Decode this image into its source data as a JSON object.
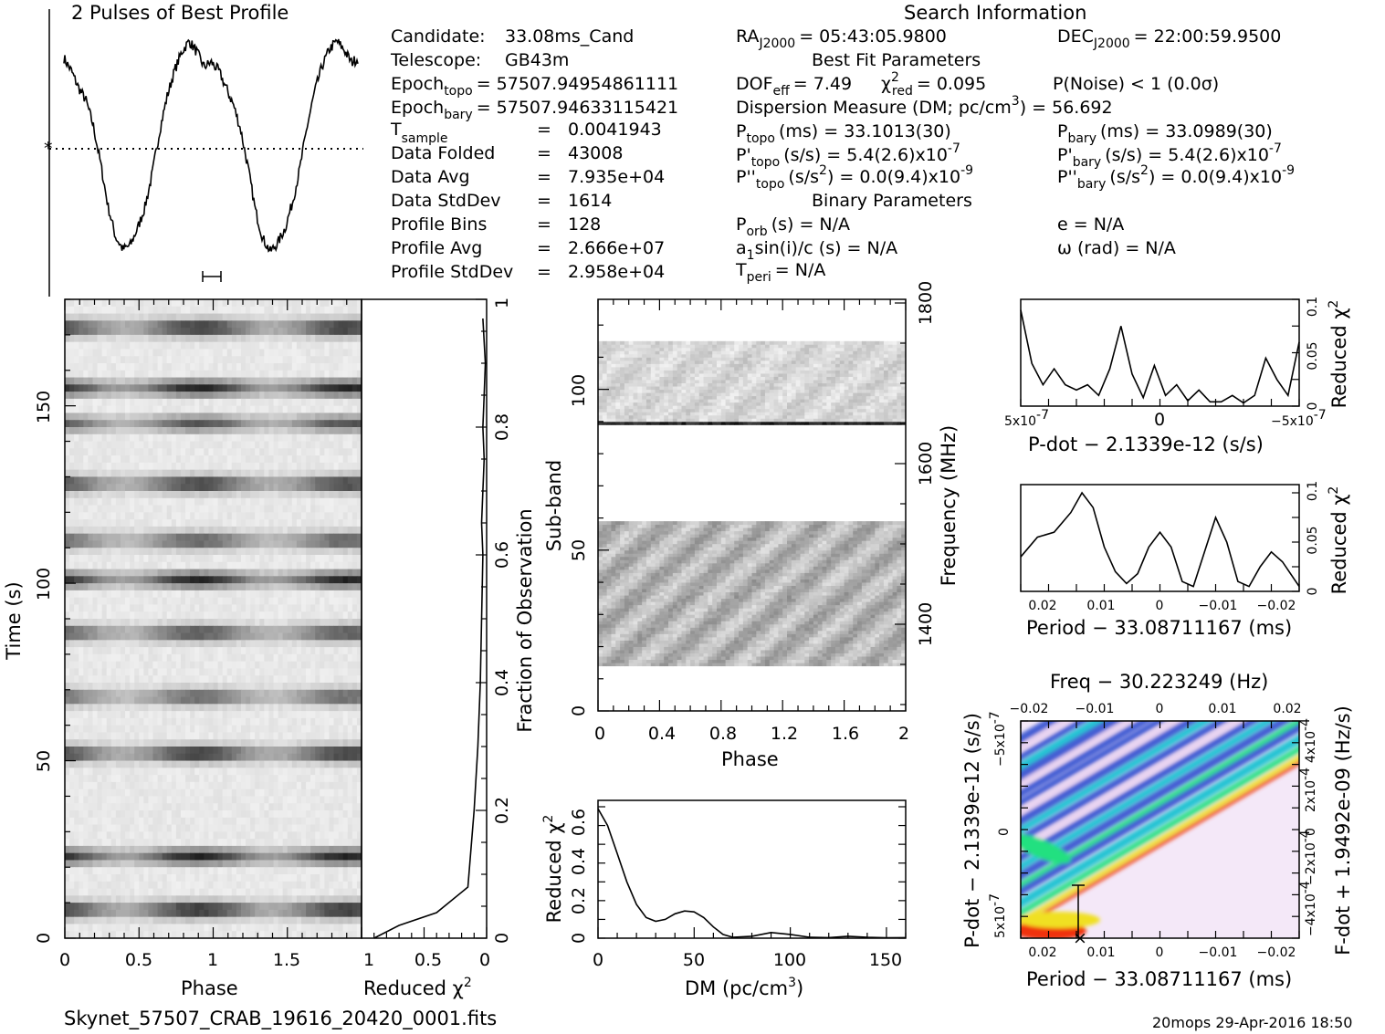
{
  "profile": {
    "title": "2 Pulses of Best Profile",
    "error_bar": true
  },
  "search_info": {
    "title": "Search Information",
    "candidate": {
      "label": "Candidate:",
      "value": "33.08ms_Cand"
    },
    "telescope": {
      "label": "Telescope:",
      "value": "GB43m"
    },
    "epoch_topo": {
      "label": "Epoch",
      "sub": "topo",
      "value": "= 57507.94954861111"
    },
    "epoch_bary": {
      "label": "Epoch",
      "sub": "bary",
      "value": "= 57507.94633115421"
    },
    "t_sample": {
      "label": "T",
      "sub": "sample",
      "eq": "=",
      "value": "0.0041943"
    },
    "data_folded": {
      "label": "Data Folded",
      "eq": "=",
      "value": "43008"
    },
    "data_avg": {
      "label": "Data Avg",
      "eq": "=",
      "value": "7.935e+04"
    },
    "data_stddev": {
      "label": "Data StdDev",
      "eq": "=",
      "value": "1614"
    },
    "profile_bins": {
      "label": "Profile Bins",
      "eq": "=",
      "value": "128"
    },
    "profile_avg": {
      "label": "Profile Avg",
      "eq": "=",
      "value": "2.666e+07"
    },
    "profile_stddev": {
      "label": "Profile StdDev",
      "eq": "=",
      "value": "2.958e+04"
    },
    "ra": {
      "label": "RA",
      "sub": "J2000",
      "value": "= 05:43:05.9800"
    },
    "dec": {
      "label": "DEC",
      "sub": "J2000",
      "value": "= 22:00:59.9500"
    },
    "best_fit_title": "Best Fit Parameters",
    "dof": {
      "label": "DOF",
      "sub": "eff",
      "value": "= 7.49"
    },
    "chi2": {
      "label": "χ",
      "sup": "2",
      "sub": "red",
      "value": "= 0.095"
    },
    "pnoise": "P(Noise) < 1   (0.0σ)",
    "dm_line": {
      "text": "Dispersion Measure (DM; pc/cm",
      "sup": "3",
      "tail": ") = 56.692"
    },
    "p_topo": {
      "label": "P",
      "sub": "topo",
      "value": "(ms)  =  33.1013(30)"
    },
    "p_bary": {
      "label": "P",
      "sub": "bary",
      "value": "(ms)  =  33.0989(30)"
    },
    "pd_topo": {
      "label": "P'",
      "sub": "topo",
      "value": "(s/s)  =   5.4(2.6)x10",
      "exp": "-7"
    },
    "pd_bary": {
      "label": "P'",
      "sub": "bary",
      "value": "(s/s)  =   5.4(2.6)x10",
      "exp": "-7"
    },
    "pdd_topo": {
      "label": "P''",
      "sub": "topo",
      "value": "(s/s",
      "sup": "2",
      "tail": ") = 0.0(9.4)x10",
      "exp": "-9"
    },
    "pdd_bary": {
      "label": "P''",
      "sub": "bary",
      "value": "(s/s",
      "sup": "2",
      "tail": ") = 0.0(9.4)x10",
      "exp": "-9"
    },
    "binary_title": "Binary Parameters",
    "p_orb": {
      "label": "P",
      "sub": "orb",
      "value": "(s) = N/A"
    },
    "e": "e = N/A",
    "a1": {
      "label": "a",
      "sub": "1",
      "value": "sin(i)/c (s) = N/A"
    },
    "omega": "ω (rad) = N/A",
    "t_peri": {
      "label": "T",
      "sub": "peri",
      "value": "= N/A"
    }
  },
  "time_phase": {
    "xlabel": "Phase",
    "ylabel": "Time (s)",
    "xticks": [
      "0",
      "0.5",
      "1",
      "1.5"
    ],
    "yticks": [
      "0",
      "50",
      "100",
      "150"
    ]
  },
  "red_chi_time": {
    "xlabel": "Reduced χ",
    "xlabel_sup": "2",
    "xticks": [
      "1",
      "0.5",
      "0"
    ],
    "right_label": "Fraction of Observation",
    "right_ticks": [
      "0",
      "0.2",
      "0.4",
      "0.6",
      "0.8",
      "1"
    ]
  },
  "subband": {
    "xlabel": "Phase",
    "ylabel": "Sub-band",
    "xticks": [
      "0",
      "0.4",
      "0.8",
      "1.2",
      "1.6",
      "2"
    ],
    "yticks": [
      "0",
      "50",
      "100"
    ],
    "right_label": "Frequency (MHz)",
    "right_ticks": [
      "1400",
      "1600",
      "1800"
    ]
  },
  "dm_plot": {
    "xlabel": "DM (pc/cm",
    "xlabel_sup": "3",
    "xlabel_tail": ")",
    "ylabel": "Reduced χ",
    "ylabel_sup": "2",
    "xticks": [
      "0",
      "50",
      "100",
      "150"
    ],
    "yticks": [
      "0",
      "0.2",
      "0.4",
      "0.6"
    ]
  },
  "pdot_plot": {
    "xlabel": "P-dot − 2.1339e-12 (s/s)",
    "ylabel": "Reduced χ",
    "ylabel_sup": "2",
    "xticks": [
      "5x10",
      "0",
      "−5x10"
    ],
    "xtick_exp": "-7",
    "yticks": [
      "0",
      "0.05",
      "0.1"
    ]
  },
  "period_plot": {
    "xlabel": "Period − 33.08711167 (ms)",
    "ylabel": "Reduced χ",
    "ylabel_sup": "2",
    "xticks": [
      "0.02",
      "0.01",
      "0",
      "−0.01",
      "−0.02"
    ],
    "yticks": [
      "0",
      "0.05",
      "0.1"
    ]
  },
  "ppdot_plot": {
    "top_label": "Freq − 30.223249 (Hz)",
    "top_ticks": [
      "−0.02",
      "−0.01",
      "0",
      "0.01",
      "0.02"
    ],
    "xlabel": "Period − 33.08711167 (ms)",
    "xticks": [
      "0.02",
      "0.01",
      "0",
      "−0.01",
      "−0.02"
    ],
    "ylabel": "P-dot − 2.1339e-12 (s/s)",
    "yticks": [
      "5x10",
      "0",
      "−5x10"
    ],
    "ytick_exp": "-7",
    "right_label": "F-dot + 1.9492e-09 (Hz/s)",
    "right_ticks": [
      "−4x10",
      "−2x10",
      "0",
      "2x10",
      "4x10"
    ],
    "right_exp": "-4"
  },
  "footer": {
    "filename": "Skynet_57507_CRAB_19616_20420_0001.fits",
    "stamp": "20mops 29-Apr-2016 18:50"
  },
  "chart_data": [
    {
      "type": "line",
      "name": "profile",
      "x_range": [
        0,
        2
      ],
      "x": [
        0,
        0.05,
        0.1,
        0.15,
        0.2,
        0.25,
        0.3,
        0.35,
        0.4,
        0.45,
        0.5,
        0.55,
        0.6,
        0.65,
        0.7,
        0.75,
        0.8,
        0.85,
        0.9,
        0.95,
        1.0,
        1.05,
        1.1,
        1.15,
        1.2,
        1.25,
        1.3,
        1.35,
        1.4,
        1.45,
        1.5,
        1.55,
        1.6,
        1.65,
        1.7,
        1.75,
        1.8,
        1.85,
        1.9,
        1.95,
        2.0
      ],
      "y": [
        0.92,
        0.86,
        0.78,
        0.72,
        0.6,
        0.42,
        0.22,
        0.08,
        0.02,
        0.04,
        0.12,
        0.22,
        0.38,
        0.58,
        0.74,
        0.86,
        0.95,
        1.0,
        0.95,
        0.88,
        0.9,
        0.86,
        0.78,
        0.7,
        0.58,
        0.4,
        0.2,
        0.07,
        0.01,
        0.05,
        0.12,
        0.24,
        0.4,
        0.6,
        0.76,
        0.88,
        0.96,
        1.0,
        0.96,
        0.9,
        0.92
      ]
    },
    {
      "type": "heatmap",
      "name": "time-vs-phase",
      "xlim": [
        0,
        2
      ],
      "ylim": [
        0,
        180
      ],
      "xlabel": "Phase",
      "ylabel": "Time (s)",
      "dark_bands_time_s": [
        8,
        23,
        52,
        68,
        86,
        101,
        112,
        128,
        145,
        155,
        172
      ],
      "band_strength": [
        1.0,
        0.85,
        0.95,
        0.7,
        0.8,
        0.85,
        0.75,
        0.9,
        0.65,
        0.85,
        0.95
      ]
    },
    {
      "type": "line",
      "name": "reduced-chi2-vs-time",
      "x": [
        0.1,
        0.3,
        0.6,
        0.85,
        0.9,
        0.93,
        0.95,
        0.96,
        0.97,
        0.96,
        0.97,
        0.98,
        0.97,
        0.98,
        0.99,
        0.97
      ],
      "y": [
        0.0,
        0.02,
        0.04,
        0.08,
        0.2,
        0.3,
        0.4,
        0.5,
        0.6,
        0.65,
        0.7,
        0.75,
        0.8,
        0.85,
        0.9,
        0.97
      ]
    },
    {
      "type": "heatmap",
      "name": "subband-vs-phase",
      "xlim": [
        0,
        2
      ],
      "ylim": [
        0,
        128
      ],
      "filled_subband_ranges": [
        [
          14,
          59
        ],
        [
          89,
          115
        ]
      ],
      "dark_line_subband": 89
    },
    {
      "type": "line",
      "name": "dm-curve",
      "xlabel": "DM (pc/cm3)",
      "ylabel": "Reduced χ2",
      "xlim": [
        0,
        160
      ],
      "ylim": [
        0,
        0.7
      ],
      "x": [
        0,
        5,
        10,
        15,
        20,
        25,
        30,
        35,
        40,
        45,
        50,
        55,
        60,
        65,
        70,
        80,
        90,
        100,
        110,
        120,
        130,
        140,
        150,
        160
      ],
      "y": [
        0.69,
        0.6,
        0.45,
        0.3,
        0.18,
        0.11,
        0.09,
        0.1,
        0.13,
        0.145,
        0.14,
        0.11,
        0.06,
        0.02,
        0.005,
        0.01,
        0.03,
        0.02,
        0.005,
        0.003,
        0.01,
        0.005,
        0.002,
        0.003
      ]
    },
    {
      "type": "line",
      "name": "pdot-curve",
      "xlim": [
        5,
        -5
      ],
      "ylim": [
        0,
        0.1
      ],
      "x": [
        5.0,
        4.6,
        4.2,
        3.8,
        3.4,
        3.0,
        2.6,
        2.2,
        1.8,
        1.4,
        1.0,
        0.6,
        0.2,
        -0.2,
        -0.6,
        -1.0,
        -1.4,
        -1.8,
        -2.2,
        -2.6,
        -3.0,
        -3.4,
        -3.8,
        -4.2,
        -4.6,
        -5.0
      ],
      "y": [
        0.09,
        0.04,
        0.02,
        0.035,
        0.02,
        0.015,
        0.02,
        0.01,
        0.035,
        0.075,
        0.03,
        0.008,
        0.038,
        0.01,
        0.02,
        0.005,
        0.015,
        0.004,
        0.004,
        0.01,
        0.003,
        0.01,
        0.045,
        0.025,
        0.01,
        0.06
      ],
      "x_unit": "x10^-7"
    },
    {
      "type": "line",
      "name": "period-curve",
      "xlim": [
        0.025,
        -0.025
      ],
      "ylim": [
        0,
        0.1
      ],
      "x": [
        0.025,
        0.022,
        0.019,
        0.016,
        0.014,
        0.012,
        0.01,
        0.008,
        0.006,
        0.004,
        0.002,
        0.0,
        -0.002,
        -0.004,
        -0.006,
        -0.008,
        -0.01,
        -0.012,
        -0.014,
        -0.016,
        -0.018,
        -0.02,
        -0.022,
        -0.025
      ],
      "y": [
        0.035,
        0.055,
        0.06,
        0.08,
        0.1,
        0.085,
        0.045,
        0.02,
        0.008,
        0.018,
        0.045,
        0.06,
        0.045,
        0.01,
        0.005,
        0.04,
        0.075,
        0.05,
        0.01,
        0.005,
        0.025,
        0.04,
        0.03,
        0.005
      ]
    },
    {
      "type": "heatmap",
      "name": "period-pdot-plane",
      "xlim": [
        0.025,
        -0.025
      ],
      "ylim": [
        5,
        -5
      ],
      "colormap": [
        "#ffffff",
        "#e8d0f0",
        "#3050d0",
        "#10c0d0",
        "#20e080",
        "#f0e020",
        "#f03010"
      ],
      "best_marker": {
        "period": 0.0145,
        "pdot": 4.6
      }
    }
  ]
}
